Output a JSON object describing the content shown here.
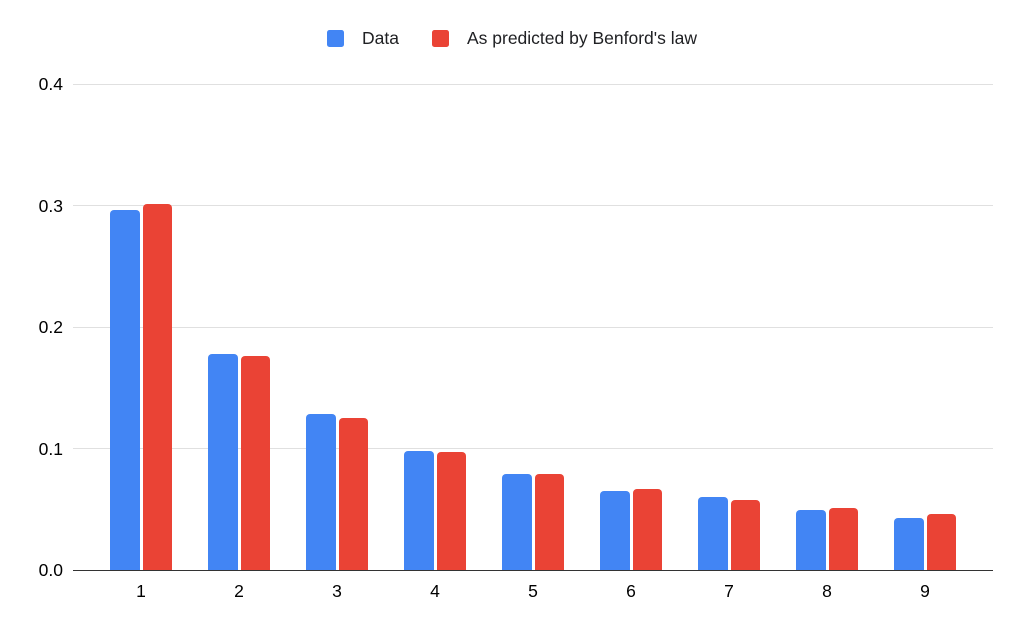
{
  "chart_data": {
    "type": "bar",
    "title": "",
    "xlabel": "",
    "ylabel": "",
    "categories": [
      "1",
      "2",
      "3",
      "4",
      "5",
      "6",
      "7",
      "8",
      "9"
    ],
    "series": [
      {
        "name": "Data",
        "color": "#4285f4",
        "values": [
          0.296,
          0.178,
          0.128,
          0.098,
          0.079,
          0.065,
          0.06,
          0.049,
          0.043
        ]
      },
      {
        "name": "As predicted by Benford's law",
        "color": "#ea4335",
        "values": [
          0.301,
          0.176,
          0.125,
          0.097,
          0.079,
          0.067,
          0.058,
          0.051,
          0.046
        ]
      }
    ],
    "ylim": [
      0,
      0.4
    ],
    "yticks": [
      0,
      0.1,
      0.2,
      0.3,
      0.4
    ],
    "ytick_labels": [
      "0.0",
      "0.1",
      "0.2",
      "0.3",
      "0.4"
    ],
    "grid": true,
    "legend_position": "top",
    "colors": {
      "grid": "#e0e0e0",
      "axis": "#333333",
      "text": "#000000"
    }
  }
}
